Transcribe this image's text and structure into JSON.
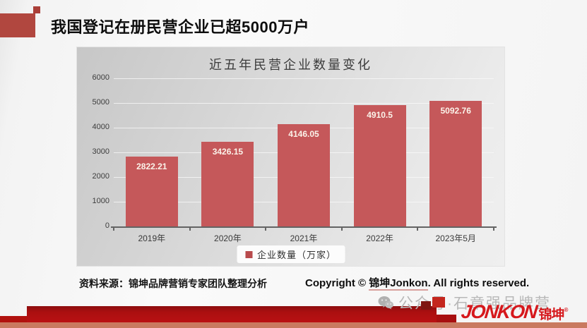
{
  "slide": {
    "title": "我国登记在册民营企业已超5000万户",
    "source_note": "资料来源：锦坤品牌营销专家团队整理分析",
    "copyright_prefix": "Copyright © ",
    "copyright_brand": "锦坤Jonkon",
    "copyright_suffix": ". All rights reserved.",
    "watermark_text": "公众号·石章强品牌营",
    "logo_en": "JONKON",
    "logo_cn": "锦坤",
    "logo_reg": "®"
  },
  "chart_data": {
    "type": "bar",
    "title": "近五年民营企业数量变化",
    "categories": [
      "2019年",
      "2020年",
      "2021年",
      "2022年",
      "2023年5月"
    ],
    "values": [
      2822.21,
      3426.15,
      4146.05,
      4910.5,
      5092.76
    ],
    "value_labels": [
      "2822.21",
      "3426.15",
      "4146.05",
      "4910.5",
      "5092.76"
    ],
    "legend": "企业数量（万家）",
    "xlabel": "",
    "ylabel": "",
    "ylim": [
      0,
      6000
    ],
    "yticks": [
      0,
      1000,
      2000,
      3000,
      4000,
      5000,
      6000
    ],
    "grid": true,
    "legend_position": "bottom",
    "bar_color": "#c5585a",
    "label_color": "#fbf3ea"
  },
  "colors": {
    "accent_red": "#b1473f",
    "footer_red": "#aa0f10",
    "footer_salmon": "#c97a60",
    "logo_red": "#d6181c",
    "watermark_gray": "#b8b8b8"
  }
}
